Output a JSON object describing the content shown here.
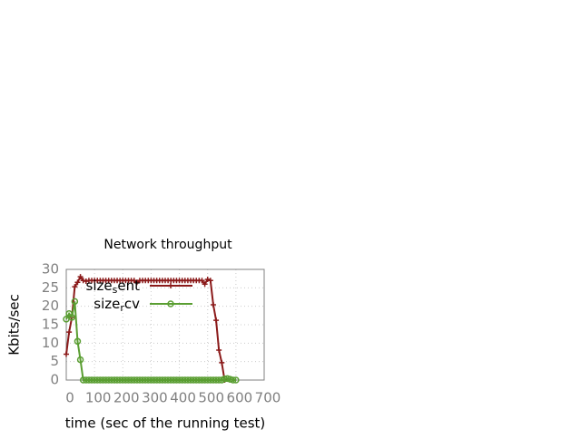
{
  "chart_data": {
    "type": "line",
    "title": "Network throughput",
    "x_label": "time (sec of the running test)",
    "y_label": "Kbits/sec",
    "xlim": [
      0,
      700
    ],
    "xticks": [
      0,
      100,
      200,
      300,
      400,
      500,
      600,
      700
    ],
    "ylim": [
      0,
      30
    ],
    "yticks": [
      0,
      5,
      10,
      15,
      20,
      25,
      30
    ],
    "grid": true,
    "legend": "top-left",
    "series": [
      {
        "name": "size_sent",
        "color": "#8b1a1a",
        "marker": "plus",
        "x": [
          0,
          10,
          20,
          30,
          40,
          50,
          60,
          70,
          80,
          90,
          100,
          110,
          120,
          130,
          140,
          150,
          160,
          170,
          180,
          190,
          200,
          210,
          220,
          230,
          240,
          250,
          260,
          270,
          280,
          290,
          300,
          310,
          320,
          330,
          340,
          350,
          360,
          370,
          380,
          390,
          400,
          410,
          420,
          430,
          440,
          450,
          460,
          470,
          480,
          490,
          500,
          510,
          520,
          530,
          540,
          550,
          560
        ],
        "values": [
          7,
          13,
          17,
          25.3,
          26.5,
          28,
          27,
          26.8,
          27,
          27,
          27,
          27,
          27,
          27,
          27,
          27,
          27,
          27,
          27,
          27,
          27,
          27,
          27,
          27,
          27,
          26.5,
          27,
          27,
          27,
          27,
          27,
          27,
          27,
          27,
          27,
          27,
          27,
          27,
          27,
          27,
          27,
          27,
          27,
          27,
          27,
          27,
          27,
          27,
          27,
          26,
          27.3,
          27,
          20.4,
          16.2,
          8.1,
          4.7,
          0
        ]
      },
      {
        "name": "size_rcv",
        "color": "#5a9e32",
        "marker": "circle",
        "x": [
          0,
          10,
          20,
          30,
          40,
          50,
          60,
          70,
          80,
          90,
          100,
          110,
          120,
          130,
          140,
          150,
          160,
          170,
          180,
          190,
          200,
          210,
          220,
          230,
          240,
          250,
          260,
          270,
          280,
          290,
          300,
          310,
          320,
          330,
          340,
          350,
          360,
          370,
          380,
          390,
          400,
          410,
          420,
          430,
          440,
          450,
          460,
          470,
          480,
          490,
          500,
          510,
          520,
          530,
          540,
          550,
          560,
          570,
          580,
          590,
          600
        ],
        "values": [
          16.5,
          18,
          17,
          21.3,
          10.5,
          5.5,
          0,
          0,
          0,
          0,
          0,
          0,
          0,
          0,
          0,
          0,
          0,
          0,
          0,
          0,
          0,
          0,
          0,
          0,
          0,
          0,
          0,
          0,
          0,
          0,
          0,
          0,
          0,
          0,
          0,
          0,
          0,
          0,
          0,
          0,
          0,
          0,
          0,
          0,
          0,
          0,
          0,
          0,
          0,
          0,
          0,
          0,
          0,
          0,
          0,
          0,
          0.3,
          0.4,
          0.2,
          0,
          0
        ]
      }
    ]
  }
}
